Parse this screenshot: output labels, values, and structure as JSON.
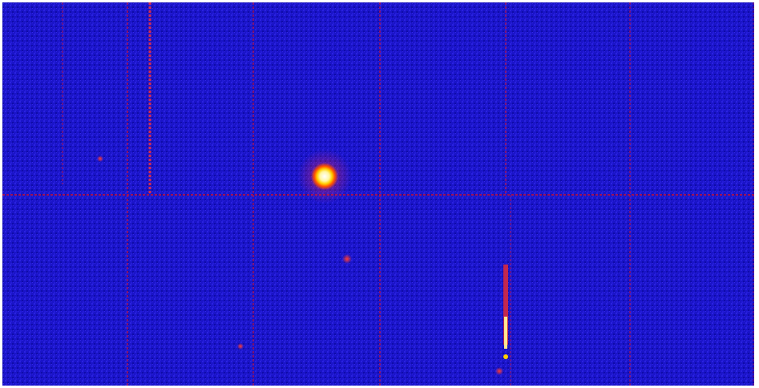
{
  "image": {
    "kind": "false-color astronomical detector image",
    "colors": {
      "background": "#1a14c8",
      "background_dark": "#0d0aa0",
      "noise": "#2a22e0",
      "streak": "#c8123a",
      "streak_hot": "#ff3030",
      "source_core": "#ffffff",
      "source_mid": "#ffd000",
      "source_outer": "#ff5000"
    },
    "features": [
      "bright-point-source",
      "horizontal-readout-streak",
      "vertical-readout-streaks",
      "faint-point-sources",
      "bright-vertical-streak"
    ]
  }
}
